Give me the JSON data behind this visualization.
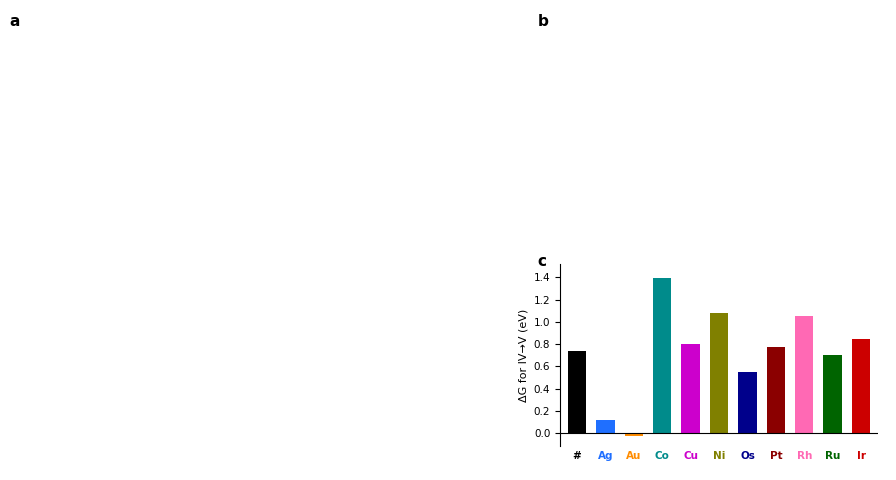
{
  "categories": [
    "#",
    "Ag",
    "Au",
    "Co",
    "Cu",
    "Ni",
    "Os",
    "Pt",
    "Rh",
    "Ru",
    "Ir"
  ],
  "values": [
    0.74,
    0.12,
    -0.03,
    1.39,
    0.8,
    1.08,
    0.55,
    0.77,
    1.05,
    0.7,
    0.85
  ],
  "bar_colors": [
    "#000000",
    "#1f6fff",
    "#ff8c00",
    "#008b8b",
    "#cc00cc",
    "#808000",
    "#00008b",
    "#8b0000",
    "#ff69b4",
    "#006400",
    "#cc0000"
  ],
  "tick_colors": [
    "#000000",
    "#1f6fff",
    "#ff8c00",
    "#008b8b",
    "#cc00cc",
    "#808000",
    "#00008b",
    "#8b0000",
    "#ff69b4",
    "#006400",
    "#cc0000"
  ],
  "ylabel": "ΔG for IV→V (eV)",
  "ylim": [
    -0.12,
    1.52
  ],
  "yticks": [
    0.0,
    0.2,
    0.4,
    0.6,
    0.8,
    1.0,
    1.2,
    1.4
  ],
  "label_a": "a",
  "label_b": "b",
  "label_c": "c",
  "fig_width": 8.96,
  "fig_height": 4.8,
  "dpi": 100
}
